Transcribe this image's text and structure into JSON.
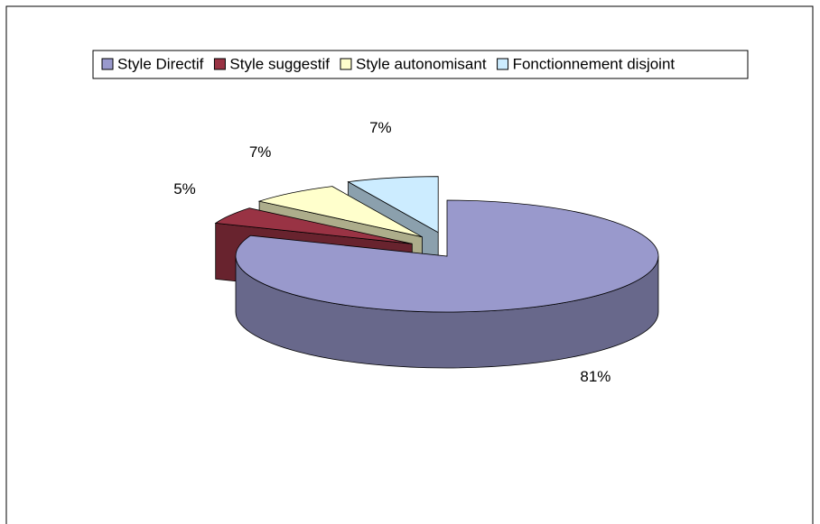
{
  "chart_data": {
    "type": "pie",
    "categories": [
      "Style Directif",
      "Style suggestif",
      "Style autonomisant",
      "Fonctionnement disjoint"
    ],
    "values": [
      81,
      5,
      7,
      7
    ],
    "value_labels": [
      "81%",
      "5%",
      "7%",
      "7%"
    ],
    "colors": [
      "#9999cc",
      "#993344",
      "#ffffcc",
      "#ccecff"
    ],
    "legend": "top"
  }
}
